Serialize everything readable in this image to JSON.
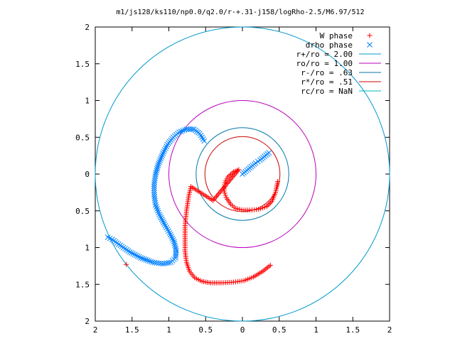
{
  "chart_data": {
    "type": "scatter",
    "title": "m1/js128/ks110/np0.0/q2.0/r-+.31-j158/logRho-2.5/M6.97/512",
    "xlabel": "",
    "ylabel": "",
    "xlim": [
      -2,
      2
    ],
    "ylim": [
      -2,
      2
    ],
    "grid": false,
    "legend_position": "top-right",
    "x_ticks": [
      -2,
      -1.5,
      -1,
      -0.5,
      0,
      0.5,
      1,
      1.5,
      2
    ],
    "y_ticks": [
      -2,
      -1.5,
      -1,
      -0.5,
      0,
      0.5,
      1,
      1.5,
      2
    ],
    "x_tick_labels": [
      "2",
      "1.5",
      "1",
      "0.5",
      "0",
      "0.5",
      "1",
      "1.5",
      "2"
    ],
    "y_tick_labels": [
      "2",
      "1.5",
      "1",
      "0.5",
      "0",
      "0.5",
      "1",
      "1.5",
      "2"
    ],
    "series": [
      {
        "name": "W phase",
        "marker": "plus",
        "color": "#ff0000",
        "points": [
          [
            0.48,
            -0.1
          ],
          [
            0.45,
            -0.25
          ],
          [
            0.4,
            -0.37
          ],
          [
            0.33,
            -0.44
          ],
          [
            0.22,
            -0.48
          ],
          [
            0.1,
            -0.49
          ],
          [
            0.02,
            -0.49
          ],
          [
            -0.04,
            -0.48
          ],
          [
            -0.09,
            -0.47
          ],
          [
            -0.16,
            -0.41
          ],
          [
            -0.22,
            -0.32
          ],
          [
            -0.25,
            -0.23
          ],
          [
            -0.24,
            -0.12
          ],
          [
            -0.2,
            -0.04
          ],
          [
            -0.12,
            0.03
          ],
          [
            -0.05,
            0.06
          ],
          [
            -0.4,
            -0.36
          ],
          [
            -0.7,
            -0.17
          ],
          [
            -0.73,
            -0.3
          ],
          [
            -0.76,
            -0.5
          ],
          [
            -0.78,
            -0.7
          ],
          [
            -0.78,
            -0.9
          ],
          [
            -0.78,
            -1.05
          ],
          [
            -0.76,
            -1.2
          ],
          [
            -0.72,
            -1.32
          ],
          [
            -0.65,
            -1.41
          ],
          [
            -0.55,
            -1.46
          ],
          [
            -0.43,
            -1.48
          ],
          [
            -0.28,
            -1.48
          ],
          [
            -0.12,
            -1.47
          ],
          [
            0.02,
            -1.45
          ],
          [
            0.15,
            -1.4
          ],
          [
            0.28,
            -1.32
          ],
          [
            0.38,
            -1.24
          ],
          [
            -1.58,
            -1.23
          ]
        ]
      },
      {
        "name": "drho phase",
        "marker": "cross",
        "color": "#0080ff",
        "points": [
          [
            0.0,
            0.0
          ],
          [
            0.06,
            0.05
          ],
          [
            0.12,
            0.1
          ],
          [
            0.18,
            0.15
          ],
          [
            0.24,
            0.19
          ],
          [
            0.3,
            0.24
          ],
          [
            0.36,
            0.29
          ],
          [
            -0.52,
            0.45
          ],
          [
            -0.58,
            0.55
          ],
          [
            -0.66,
            0.61
          ],
          [
            -0.76,
            0.61
          ],
          [
            -0.86,
            0.57
          ],
          [
            -0.94,
            0.5
          ],
          [
            -1.02,
            0.4
          ],
          [
            -1.08,
            0.28
          ],
          [
            -1.14,
            0.14
          ],
          [
            -1.18,
            0.0
          ],
          [
            -1.2,
            -0.14
          ],
          [
            -1.2,
            -0.28
          ],
          [
            -1.18,
            -0.42
          ],
          [
            -1.13,
            -0.55
          ],
          [
            -1.06,
            -0.68
          ],
          [
            -0.99,
            -0.8
          ],
          [
            -0.93,
            -0.92
          ],
          [
            -0.9,
            -1.04
          ],
          [
            -0.91,
            -1.14
          ],
          [
            -0.97,
            -1.2
          ],
          [
            -1.08,
            -1.22
          ],
          [
            -1.22,
            -1.2
          ],
          [
            -1.38,
            -1.14
          ],
          [
            -1.53,
            -1.06
          ],
          [
            -1.66,
            -0.97
          ],
          [
            -1.77,
            -0.89
          ],
          [
            -1.83,
            -0.86
          ]
        ]
      }
    ],
    "circles": [
      {
        "name": "r+/ro = 2.00",
        "radius": 2.0,
        "color": "#0099cc"
      },
      {
        "name": "ro/ro = 1.00",
        "radius": 1.0,
        "color": "#bb00bb"
      },
      {
        "name": "r-/ro = .63",
        "radius": 0.63,
        "color": "#0077aa"
      },
      {
        "name": "r*/ro = .51",
        "radius": 0.51,
        "color": "#cc0000"
      },
      {
        "name": "rc/ro = NaN",
        "radius": null,
        "color": "#00bbbb"
      }
    ]
  }
}
